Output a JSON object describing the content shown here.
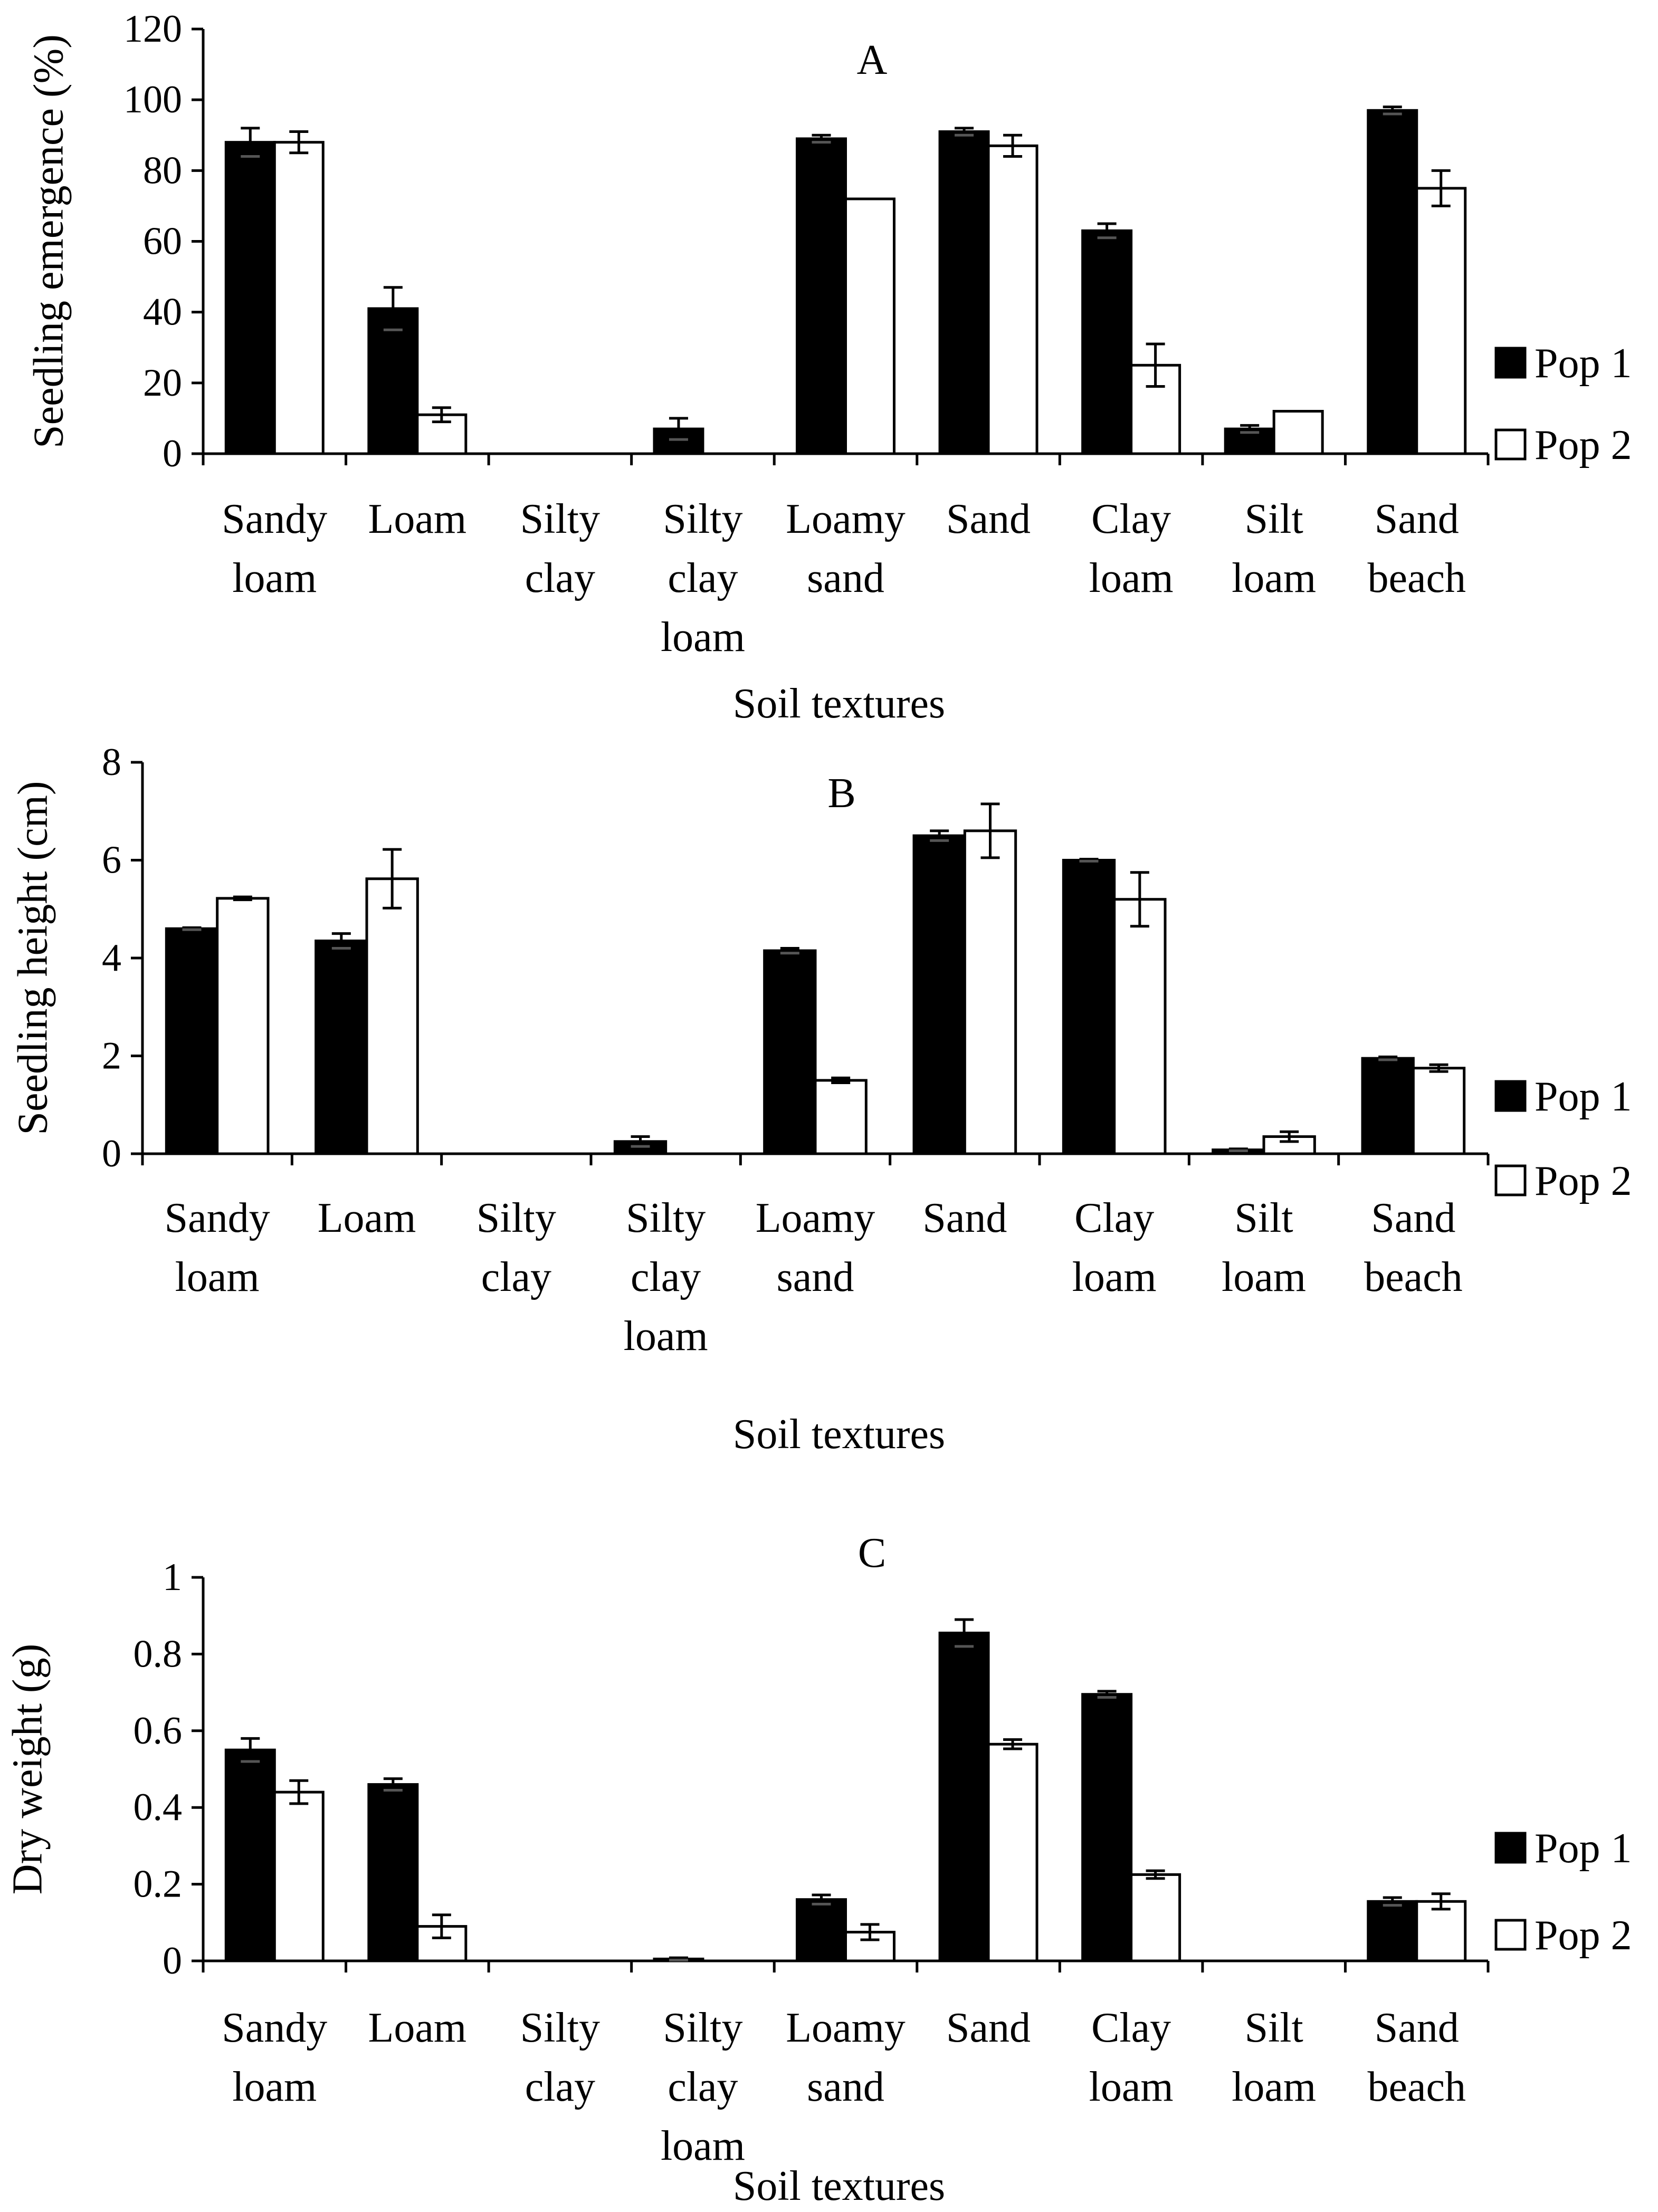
{
  "colors": {
    "pop1": "#000000",
    "pop2": "#ffffff",
    "stroke": "#000000",
    "background": "#ffffff"
  },
  "chart_data": [
    {
      "type": "bar",
      "title": "A",
      "xlabel": "Soil textures",
      "ylabel": "Seedling emergence (%)",
      "ylim": [
        0,
        120
      ],
      "yticks": [
        "0",
        "20",
        "40",
        "60",
        "80",
        "100",
        "120"
      ],
      "grid": false,
      "legend_position": "right",
      "categories": [
        [
          "Sandy",
          "loam"
        ],
        [
          "Loam"
        ],
        [
          "Silty",
          "clay"
        ],
        [
          "Silty",
          "clay",
          "loam"
        ],
        [
          "Loamy",
          "sand"
        ],
        [
          "Sand"
        ],
        [
          "Clay",
          "loam"
        ],
        [
          "Silt",
          "loam"
        ],
        [
          "Sand",
          "beach"
        ]
      ],
      "series": [
        {
          "name": "Pop 1",
          "values": [
            88,
            41,
            0,
            7,
            89,
            91,
            63,
            7,
            97
          ],
          "errors": [
            4,
            6,
            0,
            3,
            1,
            1,
            2,
            1,
            1
          ]
        },
        {
          "name": "Pop 2",
          "values": [
            88,
            11,
            0,
            0,
            72,
            87,
            25,
            12,
            75
          ],
          "errors": [
            3,
            2,
            0,
            0,
            0,
            3,
            6,
            0,
            5
          ]
        }
      ]
    },
    {
      "type": "bar",
      "title": "B",
      "xlabel": "Soil textures",
      "ylabel": "Seedling height (cm)",
      "ylim": [
        0,
        8
      ],
      "yticks": [
        "0",
        "2",
        "4",
        "6",
        "8"
      ],
      "grid": false,
      "legend_position": "right",
      "categories": [
        [
          "Sandy",
          "loam"
        ],
        [
          "Loam"
        ],
        [
          "Silty",
          "clay"
        ],
        [
          "Silty",
          "clay",
          "loam"
        ],
        [
          "Loamy",
          "sand"
        ],
        [
          "Sand"
        ],
        [
          "Clay",
          "loam"
        ],
        [
          "Silt",
          "loam"
        ],
        [
          "Sand",
          "beach"
        ]
      ],
      "series": [
        {
          "name": "Pop 1",
          "values": [
            4.6,
            4.35,
            0,
            0.25,
            4.15,
            6.5,
            6.0,
            0.08,
            1.95
          ],
          "errors": [
            0.02,
            0.15,
            0,
            0.1,
            0.05,
            0.1,
            0.02,
            0.02,
            0.03
          ]
        },
        {
          "name": "Pop 2",
          "values": [
            5.22,
            5.62,
            0,
            0,
            1.5,
            6.6,
            5.2,
            0.35,
            1.75
          ],
          "errors": [
            0.03,
            0.6,
            0,
            0,
            0.05,
            0.55,
            0.55,
            0.1,
            0.07
          ]
        }
      ]
    },
    {
      "type": "bar",
      "title": "C",
      "xlabel": "Soil textures",
      "ylabel": "Dry weight (g)",
      "ylim": [
        0,
        1
      ],
      "yticks": [
        "0",
        "0.2",
        "0.4",
        "0.6",
        "0.8",
        "1"
      ],
      "grid": false,
      "legend_position": "right",
      "categories": [
        [
          "Sandy",
          "loam"
        ],
        [
          "Loam"
        ],
        [
          "Silty",
          "clay"
        ],
        [
          "Silty",
          "clay",
          "loam"
        ],
        [
          "Loamy",
          "sand"
        ],
        [
          "Sand"
        ],
        [
          "Clay",
          "loam"
        ],
        [
          "Silt",
          "loam"
        ],
        [
          "Sand",
          "beach"
        ]
      ],
      "series": [
        {
          "name": "Pop 1",
          "values": [
            0.55,
            0.46,
            0,
            0.005,
            0.16,
            0.855,
            0.695,
            0,
            0.155
          ],
          "errors": [
            0.03,
            0.015,
            0,
            0.003,
            0.012,
            0.035,
            0.008,
            0,
            0.01
          ]
        },
        {
          "name": "Pop 2",
          "values": [
            0.44,
            0.09,
            0,
            0,
            0.075,
            0.565,
            0.225,
            0,
            0.155
          ],
          "errors": [
            0.03,
            0.03,
            0,
            0,
            0.02,
            0.012,
            0.01,
            0,
            0.02
          ]
        }
      ]
    }
  ]
}
